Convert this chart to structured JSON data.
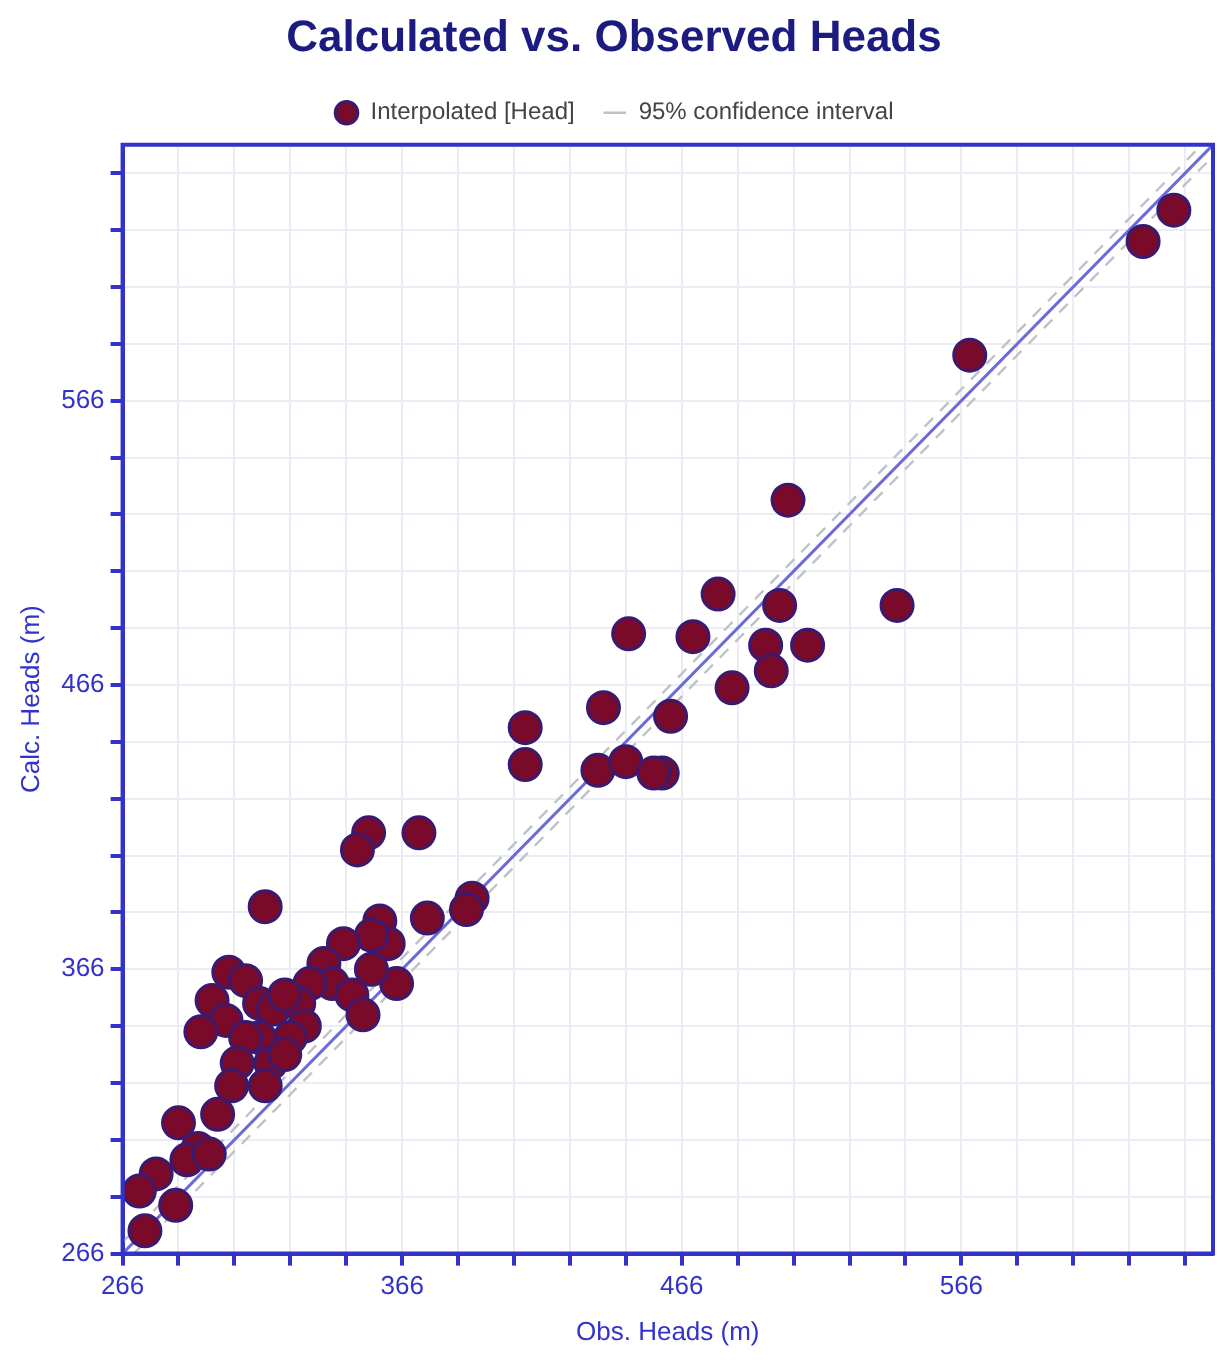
{
  "chart_data": {
    "type": "scatter",
    "title": "Calculated vs. Observed Heads",
    "xlabel": "Obs. Heads (m)",
    "ylabel": "Calc. Heads (m)",
    "xlim": [
      266,
      656
    ],
    "ylim": [
      266,
      656
    ],
    "xticks": [
      266,
      {
        "value": 286,
        "label": null
      },
      {
        "value": 306,
        "label": null
      },
      {
        "value": 326,
        "label": null
      },
      {
        "value": 346,
        "label": null
      },
      366,
      {
        "value": 386,
        "label": null
      },
      {
        "value": 406,
        "label": null
      },
      {
        "value": 426,
        "label": null
      },
      {
        "value": 446,
        "label": null
      },
      466,
      {
        "value": 486,
        "label": null
      },
      {
        "value": 506,
        "label": null
      },
      {
        "value": 526,
        "label": null
      },
      {
        "value": 546,
        "label": null
      },
      566,
      {
        "value": 586,
        "label": null
      },
      {
        "value": 606,
        "label": null
      },
      {
        "value": 626,
        "label": null
      },
      {
        "value": 646,
        "label": null
      }
    ],
    "yticks": [
      266,
      {
        "value": 286,
        "label": null
      },
      {
        "value": 306,
        "label": null
      },
      {
        "value": 326,
        "label": null
      },
      {
        "value": 346,
        "label": null
      },
      366,
      {
        "value": 386,
        "label": null
      },
      {
        "value": 406,
        "label": null
      },
      {
        "value": 426,
        "label": null
      },
      {
        "value": 446,
        "label": null
      },
      466,
      {
        "value": 486,
        "label": null
      },
      {
        "value": 506,
        "label": null
      },
      {
        "value": 526,
        "label": null
      },
      {
        "value": 546,
        "label": null
      },
      566,
      {
        "value": 586,
        "label": null
      },
      {
        "value": 606,
        "label": null
      },
      {
        "value": 626,
        "label": null
      },
      {
        "value": 646,
        "label": null
      }
    ],
    "grid": true,
    "legend": "top",
    "series": [
      {
        "name": "Interpolated [Head]",
        "color": "#7a0a2a",
        "marker": "circle",
        "x": [
          642,
          631,
          569,
          504,
          479,
          543,
          501,
          470,
          496,
          511,
          498,
          484,
          447,
          462,
          459,
          410,
          410,
          438,
          436,
          446,
          456,
          354,
          350,
          372,
          317,
          391,
          389,
          375,
          358,
          361,
          355,
          345,
          338,
          341,
          333,
          304,
          310,
          298,
          303,
          294,
          315,
          320,
          329,
          331,
          326,
          315,
          310,
          307,
          319,
          324,
          317,
          305,
          348,
          352,
          364,
          355,
          300,
          286,
          293,
          289,
          278,
          272,
          285,
          274,
          297,
          324
        ],
        "values": [
          633,
          622,
          582,
          531,
          498,
          494,
          494,
          483,
          480,
          480,
          471,
          465,
          484,
          455,
          435,
          451,
          438,
          458,
          436,
          439,
          435,
          414,
          408,
          414,
          388,
          391,
          387,
          384,
          383,
          375,
          378,
          375,
          368,
          361,
          361,
          365,
          362,
          355,
          348,
          344,
          354,
          352,
          354,
          346,
          342,
          342,
          342,
          333,
          333,
          336,
          325,
          325,
          357,
          350,
          361,
          366,
          315,
          312,
          303,
          299,
          294,
          288,
          283,
          274,
          301,
          357
        ]
      },
      {
        "type": "line",
        "color": "#6a6ad8",
        "line_style": "solid",
        "x": [
          266,
          656
        ],
        "values": [
          266,
          656
        ]
      },
      {
        "type": "line",
        "name": "95% confidence interval",
        "color": "#c0c0c8",
        "line_style": "dashed",
        "x": [
          266,
          650
        ],
        "values": [
          270,
          654
        ]
      },
      {
        "type": "line",
        "color": "#c0c0c8",
        "line_style": "dashed",
        "x": [
          270,
          656
        ],
        "values": [
          266,
          652
        ]
      }
    ]
  }
}
